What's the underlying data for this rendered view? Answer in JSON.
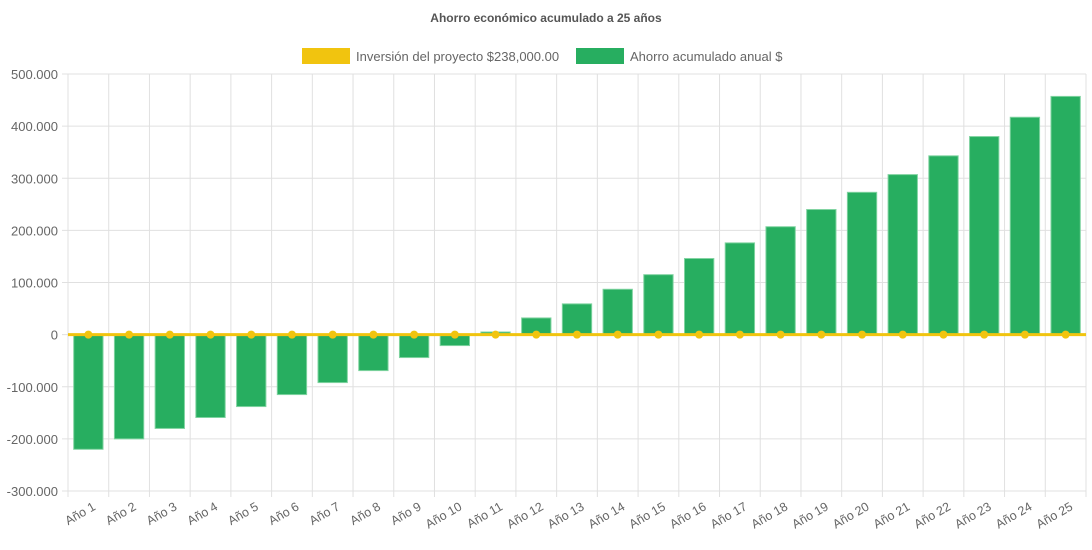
{
  "chart_data": {
    "type": "bar",
    "title": "Ahorro económico acumulado a 25 años",
    "legend_position": "top",
    "grid": true,
    "ylim": [
      -300000,
      500000
    ],
    "yticks": [
      "500.000",
      "400.000",
      "300.000",
      "200.000",
      "100.000",
      "0",
      "-100.000",
      "-200.000",
      "-300.000"
    ],
    "ytick_values": [
      500000,
      400000,
      300000,
      200000,
      100000,
      0,
      -100000,
      -200000,
      -300000
    ],
    "categories": [
      "Año 1",
      "Año 2",
      "Año 3",
      "Año 4",
      "Año 5",
      "Año 6",
      "Año 7",
      "Año 8",
      "Año 9",
      "Año 10",
      "Año 11",
      "Año 12",
      "Año 13",
      "Año 14",
      "Año 15",
      "Año 16",
      "Año 17",
      "Año 18",
      "Año 19",
      "Año 20",
      "Año 21",
      "Año 22",
      "Año 23",
      "Año 24",
      "Año 25"
    ],
    "series": [
      {
        "name": "Inversión del proyecto $238,000.00",
        "type": "line",
        "color": "#f1c40f",
        "values": [
          0,
          0,
          0,
          0,
          0,
          0,
          0,
          0,
          0,
          0,
          0,
          0,
          0,
          0,
          0,
          0,
          0,
          0,
          0,
          0,
          0,
          0,
          0,
          0,
          0
        ]
      },
      {
        "name": "Ahorro acumulado anual $",
        "type": "bar",
        "color": "#27ae60",
        "values": [
          -220000,
          -200000,
          -180000,
          -159000,
          -138000,
          -115000,
          -92000,
          -69000,
          -44000,
          -21000,
          5000,
          32000,
          59000,
          87000,
          115000,
          146000,
          176000,
          207000,
          240000,
          273000,
          307000,
          343000,
          380000,
          417000,
          457000
        ]
      }
    ]
  }
}
